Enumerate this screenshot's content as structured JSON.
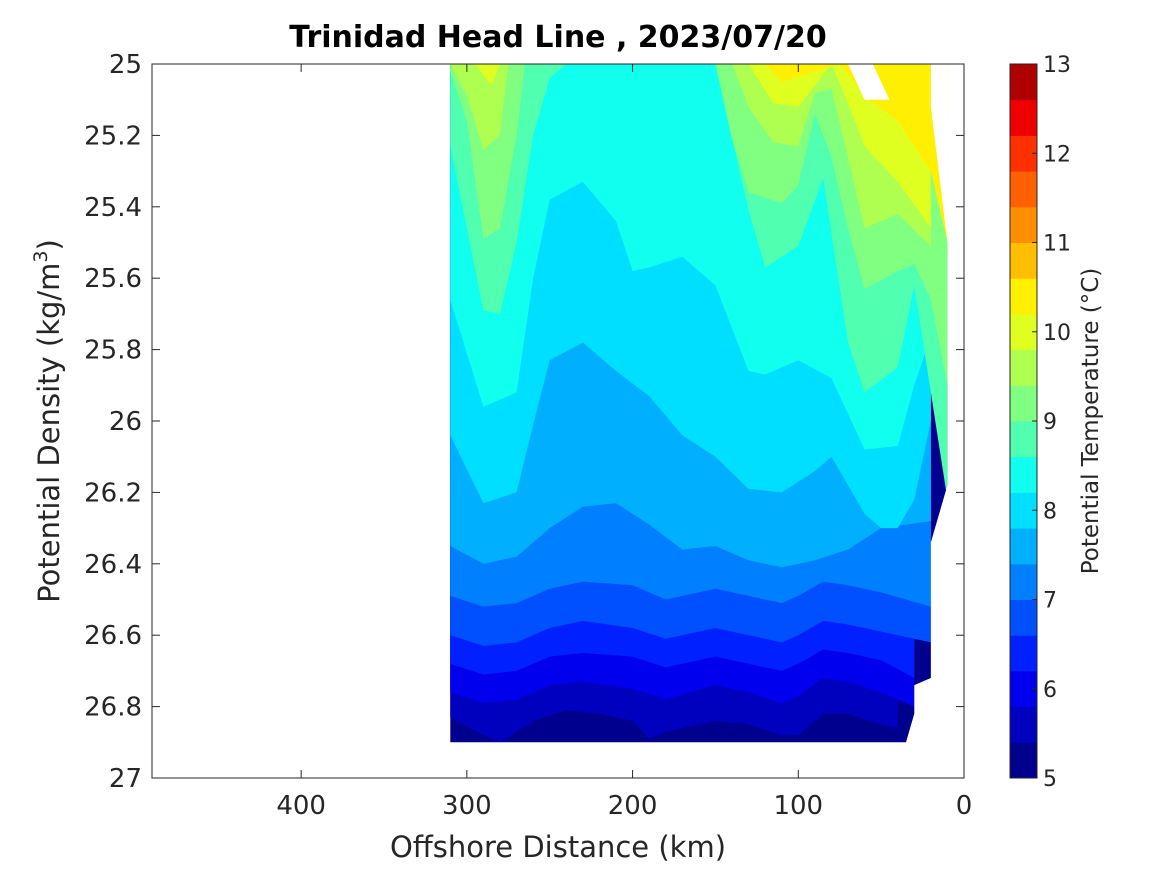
{
  "chart_data": {
    "type": "heatmap",
    "subtype": "filled-contour",
    "title": "Trinidad Head Line , 2023/07/20",
    "xlabel": "Offshore Distance (km)",
    "ylabel_main": "Potential Density (kg/m",
    "ylabel_sup": "3",
    "ylabel_tail": ")",
    "xlim": [
      490,
      0
    ],
    "x_reversed": true,
    "ylim": [
      25,
      27
    ],
    "y_reversed": true,
    "xticks": [
      400,
      300,
      200,
      100,
      0
    ],
    "yticks": [
      25,
      25.2,
      25.4,
      25.6,
      25.8,
      26,
      26.2,
      26.4,
      26.6,
      26.8,
      27
    ],
    "ytick_labels": [
      "25",
      "25.2",
      "25.4",
      "25.6",
      "25.8",
      "26",
      "26.2",
      "26.4",
      "26.6",
      "26.8",
      "27"
    ],
    "colorbar": {
      "label": "Potential Temperature (°C)",
      "min": 5,
      "max": 13,
      "step": 0.5,
      "ticks": [
        5,
        6,
        7,
        8,
        9,
        10,
        11,
        12,
        13
      ],
      "colors": [
        "#00008f",
        "#0000bf",
        "#0000ef",
        "#0020ff",
        "#0050ff",
        "#0080ff",
        "#00b0ff",
        "#00dfff",
        "#10ffef",
        "#50ffaf",
        "#80ff80",
        "#afff50",
        "#dfff20",
        "#ffef00",
        "#ffbf00",
        "#ff8f00",
        "#ff6000",
        "#ff3000",
        "#ef0000",
        "#af0000"
      ]
    },
    "section": {
      "x_min": 10,
      "x_max": 310,
      "data_bottom_density": 26.9,
      "note_domain": "data present from ~310 km offshore to the coast"
    },
    "contour_levels": [
      {
        "level": 5.5,
        "x": [
          310,
          290,
          280,
          260,
          240,
          220,
          200,
          190,
          180,
          150,
          130,
          110,
          100,
          85,
          70,
          50,
          40
        ],
        "y": [
          26.83,
          26.88,
          26.9,
          26.84,
          26.81,
          26.82,
          26.84,
          26.89,
          26.87,
          26.84,
          26.85,
          26.88,
          26.88,
          26.82,
          26.82,
          26.85,
          26.86
        ]
      },
      {
        "level": 6.0,
        "x": [
          310,
          290,
          270,
          250,
          230,
          200,
          180,
          150,
          130,
          110,
          100,
          85,
          70,
          50,
          30
        ],
        "y": [
          26.76,
          26.79,
          26.78,
          26.74,
          26.73,
          26.75,
          26.78,
          26.74,
          26.76,
          26.79,
          26.77,
          26.72,
          26.73,
          26.76,
          26.8
        ]
      },
      {
        "level": 6.5,
        "x": [
          310,
          290,
          270,
          250,
          230,
          200,
          180,
          150,
          130,
          110,
          100,
          85,
          70,
          50,
          30
        ],
        "y": [
          26.68,
          26.71,
          26.7,
          26.66,
          26.65,
          26.66,
          26.69,
          26.66,
          26.68,
          26.7,
          26.68,
          26.64,
          26.65,
          26.67,
          26.72
        ]
      },
      {
        "level": 7.0,
        "x": [
          310,
          290,
          270,
          250,
          230,
          200,
          180,
          150,
          130,
          110,
          100,
          85,
          70,
          50,
          20
        ],
        "y": [
          26.6,
          26.63,
          26.62,
          26.58,
          26.56,
          26.58,
          26.61,
          26.58,
          26.6,
          26.62,
          26.6,
          26.56,
          26.57,
          26.59,
          26.62
        ]
      },
      {
        "level": 7.5,
        "x": [
          310,
          290,
          270,
          250,
          230,
          200,
          180,
          150,
          130,
          110,
          100,
          85,
          70,
          50,
          20
        ],
        "y": [
          26.49,
          26.52,
          26.51,
          26.47,
          26.45,
          26.46,
          26.5,
          26.47,
          26.49,
          26.51,
          26.49,
          26.45,
          26.46,
          26.48,
          26.52
        ]
      },
      {
        "level": 8.0,
        "x": [
          310,
          290,
          270,
          250,
          230,
          210,
          190,
          170,
          150,
          130,
          110,
          90,
          70,
          50,
          20
        ],
        "y": [
          26.35,
          26.4,
          26.38,
          26.3,
          26.24,
          26.23,
          26.29,
          26.36,
          26.35,
          26.39,
          26.41,
          26.39,
          26.36,
          26.3,
          26.28
        ]
      },
      {
        "level": 8.5,
        "x": [
          310,
          290,
          270,
          260,
          250,
          230,
          210,
          190,
          170,
          150,
          130,
          110,
          90,
          80,
          60,
          50,
          40,
          30,
          20
        ],
        "y": [
          26.04,
          26.23,
          26.2,
          26.01,
          25.83,
          25.78,
          25.86,
          25.93,
          26.04,
          26.1,
          26.19,
          26.2,
          26.14,
          26.1,
          26.26,
          26.3,
          26.3,
          26.22,
          26.0
        ]
      },
      {
        "level": 9.0,
        "x": [
          310,
          290,
          270,
          260,
          250,
          230,
          210,
          200,
          190,
          170,
          150,
          130,
          120,
          100,
          80,
          60,
          40,
          30,
          20
        ],
        "y": [
          25.66,
          25.96,
          25.92,
          25.6,
          25.38,
          25.33,
          25.44,
          25.58,
          25.57,
          25.54,
          25.62,
          25.86,
          25.87,
          25.83,
          25.88,
          26.08,
          26.07,
          25.9,
          25.76
        ]
      },
      {
        "level": 9.5,
        "x": [
          310,
          290,
          280,
          270,
          260,
          250,
          240,
          220,
          200,
          180,
          150,
          130,
          120,
          100,
          85,
          70,
          60,
          40,
          30,
          20,
          10
        ],
        "y": [
          25.23,
          25.69,
          25.7,
          25.5,
          25.2,
          25.04,
          25.0,
          25.0,
          25.0,
          25.0,
          25.0,
          25.41,
          25.57,
          25.51,
          25.32,
          25.78,
          25.92,
          25.85,
          25.62,
          25.92,
          26.22
        ]
      },
      {
        "level": 10.0,
        "x": [
          310,
          300,
          290,
          280,
          270,
          265,
          150,
          140,
          130,
          110,
          100,
          90,
          80,
          70,
          60,
          40,
          30,
          20,
          10
        ],
        "y": [
          25.02,
          25.16,
          25.49,
          25.46,
          25.2,
          25.0,
          25.0,
          25.21,
          25.36,
          25.39,
          25.34,
          25.14,
          25.26,
          25.46,
          25.63,
          25.58,
          25.56,
          25.66,
          25.9
        ]
      },
      {
        "level": 10.5,
        "x": [
          310,
          300,
          290,
          280,
          275,
          140,
          130,
          115,
          100,
          90,
          80,
          70,
          60,
          40,
          20
        ],
        "y": [
          25.0,
          25.09,
          25.24,
          25.2,
          25.0,
          25.0,
          25.12,
          25.22,
          25.23,
          25.08,
          25.07,
          25.26,
          25.46,
          25.42,
          25.51
        ]
      },
      {
        "level": 11.0,
        "x": [
          295,
          285,
          280,
          130,
          115,
          100,
          80,
          70,
          60,
          40,
          20
        ],
        "y": [
          25.0,
          25.06,
          25.0,
          25.0,
          25.11,
          25.12,
          25.0,
          25.11,
          25.23,
          25.33,
          25.46
        ]
      },
      {
        "level": 11.5,
        "x": [
          120,
          110,
          75,
          60,
          40,
          20,
          10
        ],
        "y": [
          25.0,
          25.05,
          25.0,
          25.09,
          25.16,
          25.3,
          25.5
        ]
      }
    ]
  }
}
